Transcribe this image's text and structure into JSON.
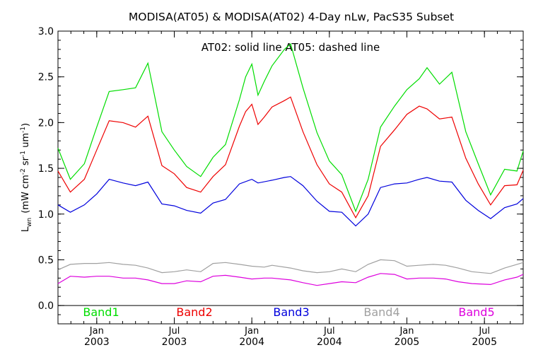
{
  "chart_data": {
    "type": "line",
    "title": "MODISA(AT05) & MODISA(AT02) 4-Day nLw, PacS35 Subset",
    "subtitle": "AT02: solid line   AT05: dashed line",
    "ylabel_main": "L",
    "ylabel_sub": "wn",
    "ylabel_units": "(mW cm",
    "ylabel_exp1": "-2",
    "ylabel_mid": " sr",
    "ylabel_exp2": "-1",
    "ylabel_mid2": " um",
    "ylabel_exp3": "-1",
    "ylabel_close": ")",
    "ylim": [
      -0.2,
      3.0
    ],
    "xlim": [
      2002.75,
      2005.75
    ],
    "y_ticks": [
      "0.0",
      "0.5",
      "1.0",
      "1.5",
      "2.0",
      "2.5",
      "3.0"
    ],
    "x_ticks": [
      {
        "x": 2003.0,
        "top": "Jan",
        "bottom": "2003"
      },
      {
        "x": 2003.5,
        "top": "Jul",
        "bottom": "2003"
      },
      {
        "x": 2004.0,
        "top": "Jan",
        "bottom": "2004"
      },
      {
        "x": 2004.5,
        "top": "Jul",
        "bottom": "2004"
      },
      {
        "x": 2005.0,
        "top": "Jan",
        "bottom": "2005"
      },
      {
        "x": 2005.5,
        "top": "Jul",
        "bottom": "2005"
      }
    ],
    "grid": false,
    "legend_position": "bottom",
    "series": [
      {
        "name": "Band1",
        "color": "#00dd00",
        "points": [
          [
            2002.75,
            1.72
          ],
          [
            2002.83,
            1.38
          ],
          [
            2002.92,
            1.55
          ],
          [
            2003.0,
            1.95
          ],
          [
            2003.08,
            2.34
          ],
          [
            2003.17,
            2.36
          ],
          [
            2003.25,
            2.38
          ],
          [
            2003.33,
            2.65
          ],
          [
            2003.42,
            1.9
          ],
          [
            2003.5,
            1.7
          ],
          [
            2003.58,
            1.52
          ],
          [
            2003.67,
            1.41
          ],
          [
            2003.75,
            1.62
          ],
          [
            2003.83,
            1.76
          ],
          [
            2003.92,
            2.25
          ],
          [
            2003.96,
            2.5
          ],
          [
            2004.0,
            2.64
          ],
          [
            2004.04,
            2.3
          ],
          [
            2004.08,
            2.45
          ],
          [
            2004.13,
            2.62
          ],
          [
            2004.21,
            2.8
          ],
          [
            2004.25,
            2.86
          ],
          [
            2004.33,
            2.38
          ],
          [
            2004.42,
            1.89
          ],
          [
            2004.5,
            1.58
          ],
          [
            2004.58,
            1.43
          ],
          [
            2004.67,
            1.03
          ],
          [
            2004.75,
            1.38
          ],
          [
            2004.83,
            1.95
          ],
          [
            2004.92,
            2.18
          ],
          [
            2005.0,
            2.36
          ],
          [
            2005.08,
            2.48
          ],
          [
            2005.13,
            2.6
          ],
          [
            2005.21,
            2.42
          ],
          [
            2005.29,
            2.55
          ],
          [
            2005.38,
            1.9
          ],
          [
            2005.46,
            1.55
          ],
          [
            2005.54,
            1.21
          ],
          [
            2005.63,
            1.49
          ],
          [
            2005.71,
            1.47
          ],
          [
            2005.75,
            1.69
          ]
        ]
      },
      {
        "name": "Band2",
        "color": "#ee0000",
        "points": [
          [
            2002.75,
            1.47
          ],
          [
            2002.83,
            1.24
          ],
          [
            2002.92,
            1.38
          ],
          [
            2003.0,
            1.7
          ],
          [
            2003.08,
            2.02
          ],
          [
            2003.17,
            2.0
          ],
          [
            2003.25,
            1.95
          ],
          [
            2003.33,
            2.07
          ],
          [
            2003.42,
            1.53
          ],
          [
            2003.5,
            1.44
          ],
          [
            2003.58,
            1.29
          ],
          [
            2003.67,
            1.24
          ],
          [
            2003.75,
            1.41
          ],
          [
            2003.83,
            1.54
          ],
          [
            2003.92,
            1.96
          ],
          [
            2003.96,
            2.12
          ],
          [
            2004.0,
            2.2
          ],
          [
            2004.04,
            1.98
          ],
          [
            2004.08,
            2.06
          ],
          [
            2004.13,
            2.17
          ],
          [
            2004.21,
            2.24
          ],
          [
            2004.25,
            2.28
          ],
          [
            2004.33,
            1.9
          ],
          [
            2004.42,
            1.54
          ],
          [
            2004.5,
            1.33
          ],
          [
            2004.58,
            1.24
          ],
          [
            2004.67,
            0.96
          ],
          [
            2004.75,
            1.2
          ],
          [
            2004.83,
            1.74
          ],
          [
            2004.92,
            1.92
          ],
          [
            2005.0,
            2.09
          ],
          [
            2005.08,
            2.18
          ],
          [
            2005.13,
            2.15
          ],
          [
            2005.21,
            2.04
          ],
          [
            2005.29,
            2.06
          ],
          [
            2005.38,
            1.61
          ],
          [
            2005.46,
            1.33
          ],
          [
            2005.54,
            1.1
          ],
          [
            2005.63,
            1.31
          ],
          [
            2005.71,
            1.32
          ],
          [
            2005.75,
            1.48
          ]
        ]
      },
      {
        "name": "Band3",
        "color": "#0000dd",
        "points": [
          [
            2002.75,
            1.1
          ],
          [
            2002.83,
            1.02
          ],
          [
            2002.92,
            1.1
          ],
          [
            2003.0,
            1.22
          ],
          [
            2003.08,
            1.38
          ],
          [
            2003.17,
            1.34
          ],
          [
            2003.25,
            1.31
          ],
          [
            2003.33,
            1.35
          ],
          [
            2003.42,
            1.11
          ],
          [
            2003.5,
            1.09
          ],
          [
            2003.58,
            1.04
          ],
          [
            2003.67,
            1.01
          ],
          [
            2003.75,
            1.12
          ],
          [
            2003.83,
            1.16
          ],
          [
            2003.92,
            1.33
          ],
          [
            2004.0,
            1.38
          ],
          [
            2004.04,
            1.34
          ],
          [
            2004.13,
            1.37
          ],
          [
            2004.21,
            1.4
          ],
          [
            2004.25,
            1.41
          ],
          [
            2004.33,
            1.31
          ],
          [
            2004.42,
            1.14
          ],
          [
            2004.5,
            1.03
          ],
          [
            2004.58,
            1.02
          ],
          [
            2004.67,
            0.87
          ],
          [
            2004.75,
            1.0
          ],
          [
            2004.83,
            1.29
          ],
          [
            2004.92,
            1.33
          ],
          [
            2005.0,
            1.34
          ],
          [
            2005.08,
            1.38
          ],
          [
            2005.13,
            1.4
          ],
          [
            2005.21,
            1.36
          ],
          [
            2005.29,
            1.35
          ],
          [
            2005.38,
            1.15
          ],
          [
            2005.46,
            1.04
          ],
          [
            2005.54,
            0.95
          ],
          [
            2005.63,
            1.07
          ],
          [
            2005.71,
            1.11
          ],
          [
            2005.75,
            1.17
          ]
        ]
      },
      {
        "name": "Band4",
        "color": "#a0a0a0",
        "points": [
          [
            2002.75,
            0.39
          ],
          [
            2002.83,
            0.45
          ],
          [
            2002.92,
            0.46
          ],
          [
            2003.0,
            0.46
          ],
          [
            2003.08,
            0.47
          ],
          [
            2003.17,
            0.45
          ],
          [
            2003.25,
            0.44
          ],
          [
            2003.33,
            0.41
          ],
          [
            2003.42,
            0.36
          ],
          [
            2003.5,
            0.37
          ],
          [
            2003.58,
            0.39
          ],
          [
            2003.67,
            0.37
          ],
          [
            2003.75,
            0.46
          ],
          [
            2003.83,
            0.47
          ],
          [
            2003.92,
            0.45
          ],
          [
            2004.0,
            0.43
          ],
          [
            2004.08,
            0.42
          ],
          [
            2004.13,
            0.44
          ],
          [
            2004.25,
            0.41
          ],
          [
            2004.33,
            0.38
          ],
          [
            2004.42,
            0.36
          ],
          [
            2004.5,
            0.37
          ],
          [
            2004.58,
            0.4
          ],
          [
            2004.67,
            0.37
          ],
          [
            2004.75,
            0.45
          ],
          [
            2004.83,
            0.5
          ],
          [
            2004.92,
            0.49
          ],
          [
            2005.0,
            0.43
          ],
          [
            2005.08,
            0.44
          ],
          [
            2005.17,
            0.45
          ],
          [
            2005.25,
            0.44
          ],
          [
            2005.33,
            0.41
          ],
          [
            2005.42,
            0.37
          ],
          [
            2005.54,
            0.35
          ],
          [
            2005.63,
            0.41
          ],
          [
            2005.71,
            0.45
          ],
          [
            2005.75,
            0.47
          ]
        ]
      },
      {
        "name": "Band5",
        "color": "#dd00dd",
        "points": [
          [
            2002.75,
            0.24
          ],
          [
            2002.83,
            0.32
          ],
          [
            2002.92,
            0.31
          ],
          [
            2003.0,
            0.32
          ],
          [
            2003.08,
            0.32
          ],
          [
            2003.17,
            0.3
          ],
          [
            2003.25,
            0.3
          ],
          [
            2003.33,
            0.28
          ],
          [
            2003.42,
            0.24
          ],
          [
            2003.5,
            0.24
          ],
          [
            2003.58,
            0.27
          ],
          [
            2003.67,
            0.26
          ],
          [
            2003.75,
            0.32
          ],
          [
            2003.83,
            0.33
          ],
          [
            2003.92,
            0.31
          ],
          [
            2004.0,
            0.29
          ],
          [
            2004.08,
            0.3
          ],
          [
            2004.13,
            0.3
          ],
          [
            2004.25,
            0.28
          ],
          [
            2004.33,
            0.25
          ],
          [
            2004.42,
            0.22
          ],
          [
            2004.5,
            0.24
          ],
          [
            2004.58,
            0.26
          ],
          [
            2004.67,
            0.25
          ],
          [
            2004.75,
            0.31
          ],
          [
            2004.83,
            0.35
          ],
          [
            2004.92,
            0.34
          ],
          [
            2005.0,
            0.29
          ],
          [
            2005.08,
            0.3
          ],
          [
            2005.17,
            0.3
          ],
          [
            2005.25,
            0.29
          ],
          [
            2005.33,
            0.26
          ],
          [
            2005.42,
            0.24
          ],
          [
            2005.54,
            0.23
          ],
          [
            2005.63,
            0.28
          ],
          [
            2005.71,
            0.31
          ],
          [
            2005.75,
            0.34
          ]
        ]
      }
    ]
  }
}
